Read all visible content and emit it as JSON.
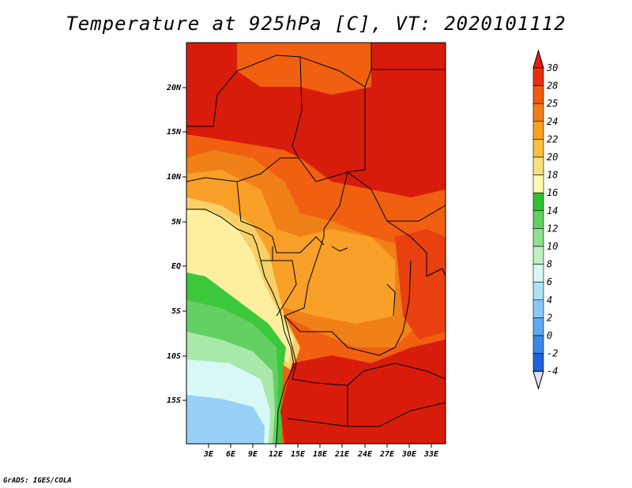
{
  "title": "Temperature at 925hPa [C], VT: 2020101112",
  "credit": "GrADS: IGES/COLA",
  "lat_labels": [
    "20N",
    "15N",
    "10N",
    "5N",
    "EQ",
    "5S",
    "10S",
    "15S"
  ],
  "lon_labels": [
    "3E",
    "6E",
    "9E",
    "12E",
    "15E",
    "18E",
    "21E",
    "24E",
    "27E",
    "30E",
    "33E"
  ],
  "colorbar": {
    "labels": [
      "30",
      "28",
      "25",
      "24",
      "22",
      "20",
      "18",
      "16",
      "14",
      "12",
      "10",
      "8",
      "6",
      "4",
      "2",
      "0",
      "-2",
      "-4"
    ],
    "colors": [
      "#e81e10",
      "#e83010",
      "#f05a10",
      "#f07e18",
      "#f8a020",
      "#f8c040",
      "#f8e080",
      "#fcfcb0",
      "#30c030",
      "#60d060",
      "#90e090",
      "#c0f0c0",
      "#d8f8f8",
      "#b0e0f8",
      "#88c8f8",
      "#60a8f0",
      "#3c88e8",
      "#2060d8",
      "#1040b0",
      "#0c2080",
      "#e0e0f8"
    ]
  },
  "colors": {
    "hot": "#d81c0c",
    "warm": "#e84010",
    "orange": "#f06010",
    "light_orange": "#f08018",
    "amber": "#f8a028",
    "yellow": "#f8d068",
    "pale": "#fcf0a0",
    "green_dark": "#3cc83c",
    "green": "#64d064",
    "green_light": "#a8e8a8",
    "cyan_pale": "#d8f8f8",
    "blue_light": "#98d0f8"
  }
}
